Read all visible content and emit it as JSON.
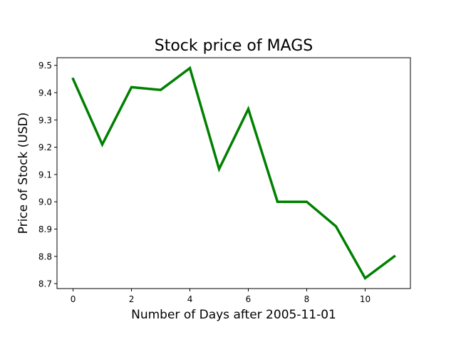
{
  "chart_data": {
    "type": "line",
    "title": "Stock price of MAGS",
    "xlabel": "Number of Days after 2005-11-01",
    "ylabel": "Price of Stock (USD)",
    "x": [
      0,
      1,
      2,
      3,
      4,
      5,
      6,
      7,
      8,
      9,
      10,
      11
    ],
    "series": [
      {
        "values": [
          9.45,
          9.21,
          9.42,
          9.41,
          9.49,
          9.12,
          9.34,
          9.0,
          9.0,
          8.91,
          8.72,
          8.8
        ],
        "color": "#008000"
      }
    ],
    "xlim": [
      -0.55,
      11.55
    ],
    "ylim": [
      8.682,
      9.528
    ],
    "xticks": [
      0,
      2,
      4,
      6,
      8,
      10
    ],
    "xtick_labels": [
      "0",
      "2",
      "4",
      "6",
      "8",
      "10"
    ],
    "yticks": [
      8.7,
      8.8,
      8.9,
      9.0,
      9.1,
      9.2,
      9.3,
      9.4,
      9.5
    ],
    "ytick_labels": [
      "8.7",
      "8.8",
      "8.9",
      "9.0",
      "9.1",
      "9.2",
      "9.3",
      "9.4",
      "9.5"
    ],
    "grid": false,
    "legend": "none"
  }
}
